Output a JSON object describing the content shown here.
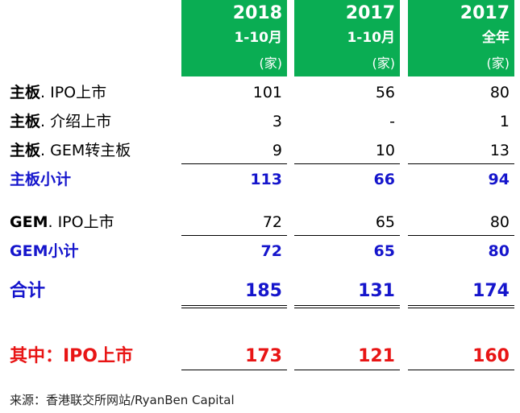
{
  "columns": [
    {
      "year": "2018",
      "period": "1-10月",
      "unit": "(家)"
    },
    {
      "year": "2017",
      "period": "1-10月",
      "unit": "(家)"
    },
    {
      "year": "2017",
      "period": "全年",
      "unit": "(家)"
    }
  ],
  "rows": {
    "main_ipo": {
      "bold": "主板",
      "rest": ". IPO上市",
      "values": [
        "101",
        "56",
        "80"
      ]
    },
    "main_intro": {
      "bold": "主板",
      "rest": ". 介绍上市",
      "values": [
        "3",
        "-",
        "1"
      ]
    },
    "main_gem_transfer": {
      "bold": "主板",
      "rest": ". GEM转主板",
      "values": [
        "9",
        "10",
        "13"
      ]
    },
    "main_subtotal": {
      "label": "主板小计",
      "values": [
        "113",
        "66",
        "94"
      ]
    },
    "gem_ipo": {
      "bold": "GEM",
      "rest": ". IPO上市",
      "values": [
        "72",
        "65",
        "80"
      ]
    },
    "gem_subtotal": {
      "label": "GEM小计",
      "values": [
        "72",
        "65",
        "80"
      ]
    },
    "total": {
      "label": "合计",
      "values": [
        "185",
        "131",
        "174"
      ]
    },
    "of_which_ipo": {
      "label": "其中：IPO上市",
      "values": [
        "173",
        "121",
        "160"
      ]
    }
  },
  "source": "来源：香港联交所网站/RyanBen Capital",
  "colors": {
    "header_green": "#0aad53",
    "subtotal_blue": "#1515cc",
    "ipo_red": "#e81515"
  }
}
